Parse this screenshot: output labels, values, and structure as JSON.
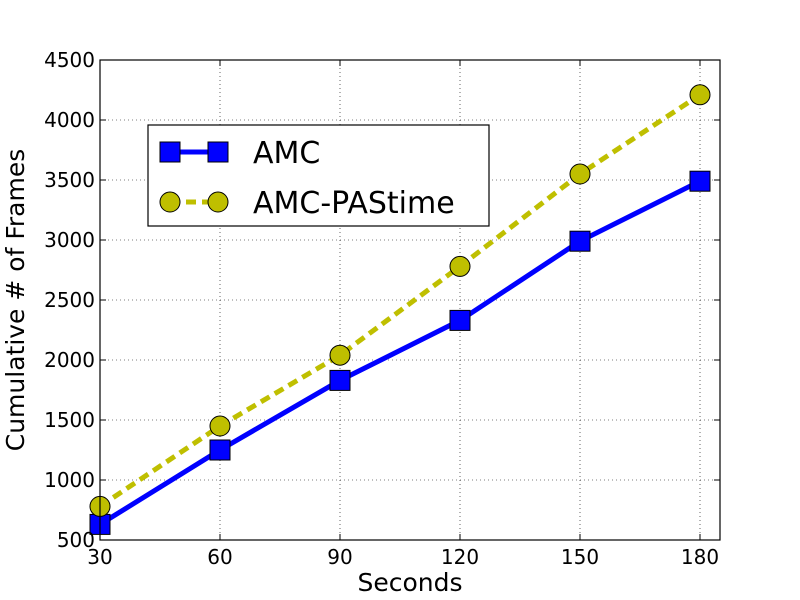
{
  "chart_data": {
    "type": "line",
    "title": "",
    "xlabel": "Seconds",
    "ylabel": "Cumulative # of Frames",
    "x": [
      30,
      60,
      90,
      120,
      150,
      180
    ],
    "xlim": [
      30,
      185
    ],
    "ylim": [
      500,
      4500
    ],
    "xticks": [
      30,
      60,
      90,
      120,
      150,
      180
    ],
    "yticks": [
      500,
      1000,
      1500,
      2000,
      2500,
      3000,
      3500,
      4000,
      4500
    ],
    "grid": true,
    "legend_position": "upper-left",
    "series": [
      {
        "name": "AMC",
        "values": [
          630,
          1250,
          1830,
          2330,
          2990,
          3490
        ],
        "color": "#0000ff",
        "line_style": "solid",
        "marker": "square"
      },
      {
        "name": "AMC-PAStime",
        "values": [
          780,
          1450,
          2040,
          2780,
          3550,
          4210
        ],
        "color": "#bfbf00",
        "line_style": "dashed",
        "marker": "circle"
      }
    ]
  }
}
